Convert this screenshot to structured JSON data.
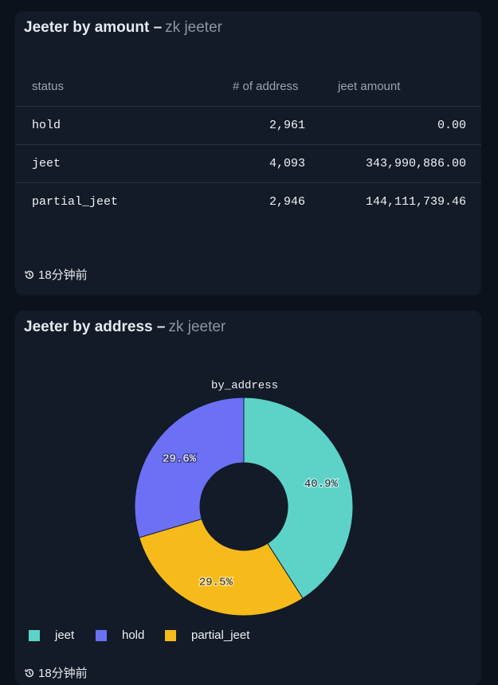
{
  "table_card": {
    "title": "Jeeter by amount –",
    "subtitle": "zk jeeter",
    "columns": [
      "status",
      "# of address",
      "jeet amount"
    ],
    "rows": [
      [
        "hold",
        "2,961",
        "0.00"
      ],
      [
        "jeet",
        "4,093",
        "343,990,886.00"
      ],
      [
        "partial_jeet",
        "2,946",
        "144,111,739.46"
      ]
    ],
    "footer": "18分钟前"
  },
  "chart_card": {
    "title": "Jeeter by address –",
    "subtitle": "zk jeeter",
    "footer": "18分钟前"
  },
  "chart_data": {
    "type": "pie",
    "donut": true,
    "title": "by_address",
    "categories": [
      "jeet",
      "hold",
      "partial_jeet"
    ],
    "values": [
      40.9,
      29.6,
      29.5
    ],
    "value_labels": [
      "40.9%",
      "29.6%",
      "29.5%"
    ],
    "colors": [
      "#5dd3c8",
      "#6b70f5",
      "#f6bb1a"
    ],
    "legend": "bottom-left"
  }
}
